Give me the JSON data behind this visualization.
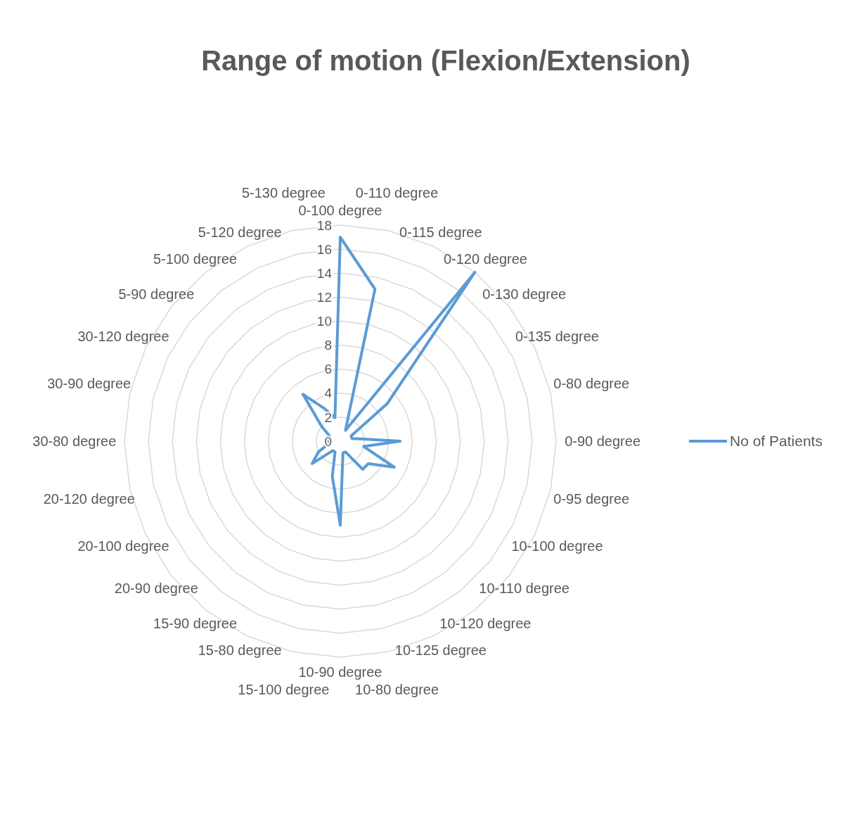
{
  "chart_data": {
    "type": "radar",
    "title": "Range of motion (Flexion/Extension)",
    "categories": [
      "0-100 degree",
      "0-110 degree",
      "0-115 degree",
      "0-120 degree",
      "0-130 degree",
      "0-135 degree",
      "0-80 degree",
      "0-90 degree",
      "0-95 degree",
      "10-100 degree",
      "10-110 degree",
      "10-120 degree",
      "10-125 degree",
      "10-80 degree",
      "10-90 degree",
      "15-100 degree",
      "15-80 degree",
      "15-90 degree",
      "20-90 degree",
      "20-100 degree",
      "20-120 degree",
      "30-80 degree",
      "30-90 degree",
      "30-120 degree",
      "5-90 degree",
      "5-100 degree",
      "5-120 degree",
      "5-130 degree"
    ],
    "series": [
      {
        "name": "No of Patients",
        "color": "#5b9bd5",
        "values": [
          17,
          13,
          1,
          18,
          5,
          1,
          1,
          5,
          2,
          5,
          3,
          3,
          1,
          1,
          7,
          3,
          1,
          1,
          3,
          2,
          1,
          1,
          1,
          1,
          2,
          5,
          3,
          2
        ]
      }
    ],
    "ylim": [
      0,
      18
    ],
    "yticks": [
      0,
      2,
      4,
      6,
      8,
      10,
      12,
      14,
      16,
      18
    ],
    "grid": true,
    "legend": "right"
  }
}
